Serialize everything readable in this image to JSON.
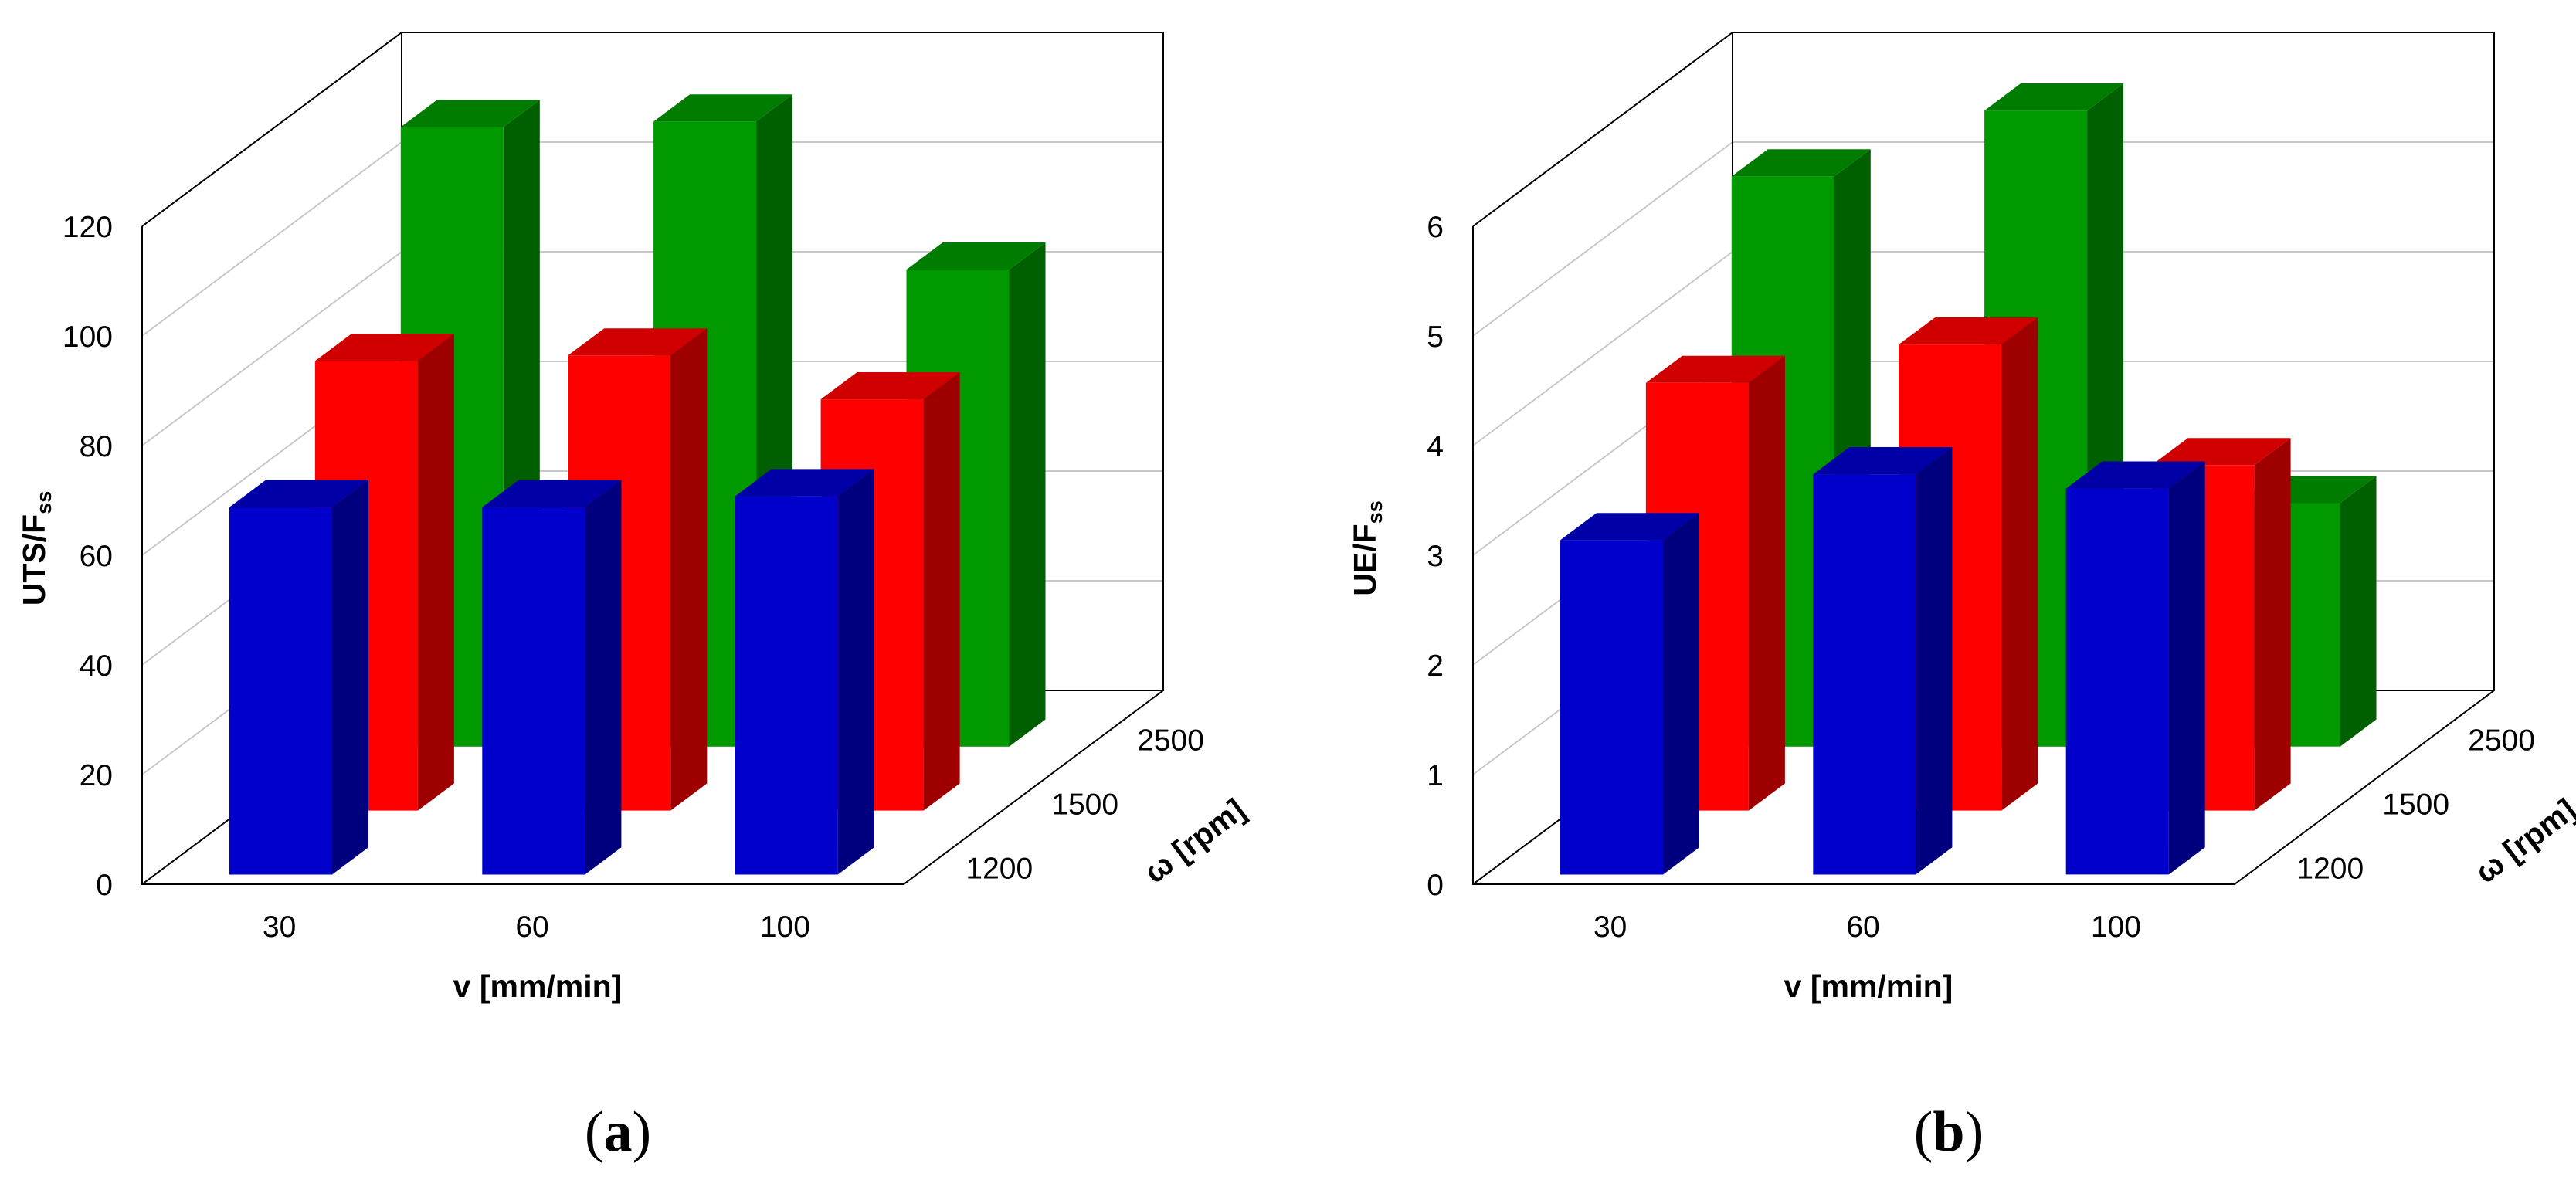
{
  "chart_data": [
    {
      "type": "bar",
      "panel_label": "a",
      "ylabel_main": "UTS/F",
      "ylabel_sub": "ss",
      "xlabel": "v [mm/min]",
      "zlabel": "ω [rpm]",
      "categories": [
        "30",
        "60",
        "100"
      ],
      "depth_categories": [
        "1200",
        "1500",
        "2500"
      ],
      "y_ticks": [
        "0",
        "20",
        "40",
        "60",
        "80",
        "100",
        "120"
      ],
      "ylim": [
        0,
        120
      ],
      "series": [
        {
          "name": "1200",
          "color": "#0000cc",
          "values": [
            67,
            67,
            69
          ]
        },
        {
          "name": "1500",
          "color": "#ff0000",
          "values": [
            82,
            83,
            75
          ]
        },
        {
          "name": "2500",
          "color": "#009900",
          "values": [
            113,
            114,
            87
          ]
        }
      ]
    },
    {
      "type": "bar",
      "panel_label": "b",
      "ylabel_main": "UE/F",
      "ylabel_sub": "ss",
      "xlabel": "v [mm/min]",
      "zlabel": "ω [rpm]",
      "categories": [
        "30",
        "60",
        "100"
      ],
      "depth_categories": [
        "1200",
        "1500",
        "2500"
      ],
      "y_ticks": [
        "0",
        "1",
        "2",
        "3",
        "4",
        "5",
        "6"
      ],
      "ylim": [
        0,
        6
      ],
      "series": [
        {
          "name": "1200",
          "color": "#0000cc",
          "values": [
            3.05,
            3.65,
            3.52
          ]
        },
        {
          "name": "1500",
          "color": "#ff0000",
          "values": [
            3.9,
            4.25,
            3.15
          ]
        },
        {
          "name": "2500",
          "color": "#009900",
          "values": [
            5.2,
            5.8,
            2.22
          ]
        }
      ]
    }
  ]
}
